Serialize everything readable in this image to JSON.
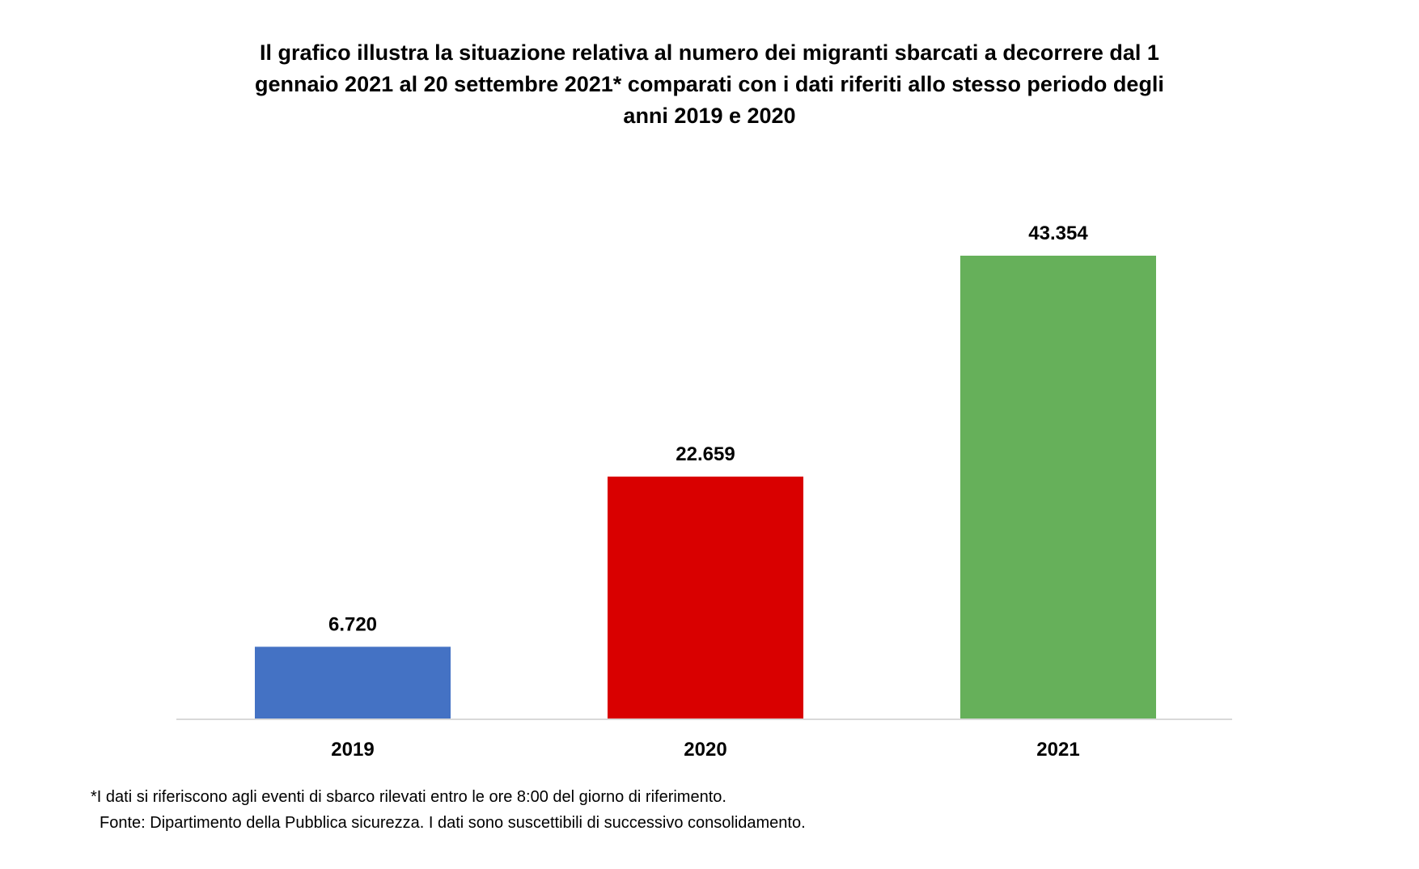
{
  "chart_data": {
    "type": "bar",
    "title_lines": [
      "Il grafico illustra la situazione relativa al numero dei migranti sbarcati a decorrere dal 1",
      "gennaio 2021 al 20 settembre 2021* comparati con i dati riferiti allo stesso periodo degli",
      "anni 2019  e 2020"
    ],
    "categories": [
      "2019",
      "2020",
      "2021"
    ],
    "values": [
      6720,
      22659,
      43354
    ],
    "value_labels": [
      "6.720",
      "22.659",
      "43.354"
    ],
    "colors": [
      "#4472C4",
      "#D90000",
      "#66B05A"
    ],
    "xlabel": "",
    "ylabel": "",
    "ylim": [
      0,
      43354
    ],
    "grid": false,
    "legend": "none"
  },
  "footnotes": {
    "asterisk": "*I dati si riferiscono agli eventi di sbarco rilevati entro le ore 8:00 del giorno di riferimento.",
    "source": "Fonte: Dipartimento della Pubblica sicurezza. I dati sono suscettibili di successivo consolidamento."
  },
  "axis_color": "#D9D9D9"
}
